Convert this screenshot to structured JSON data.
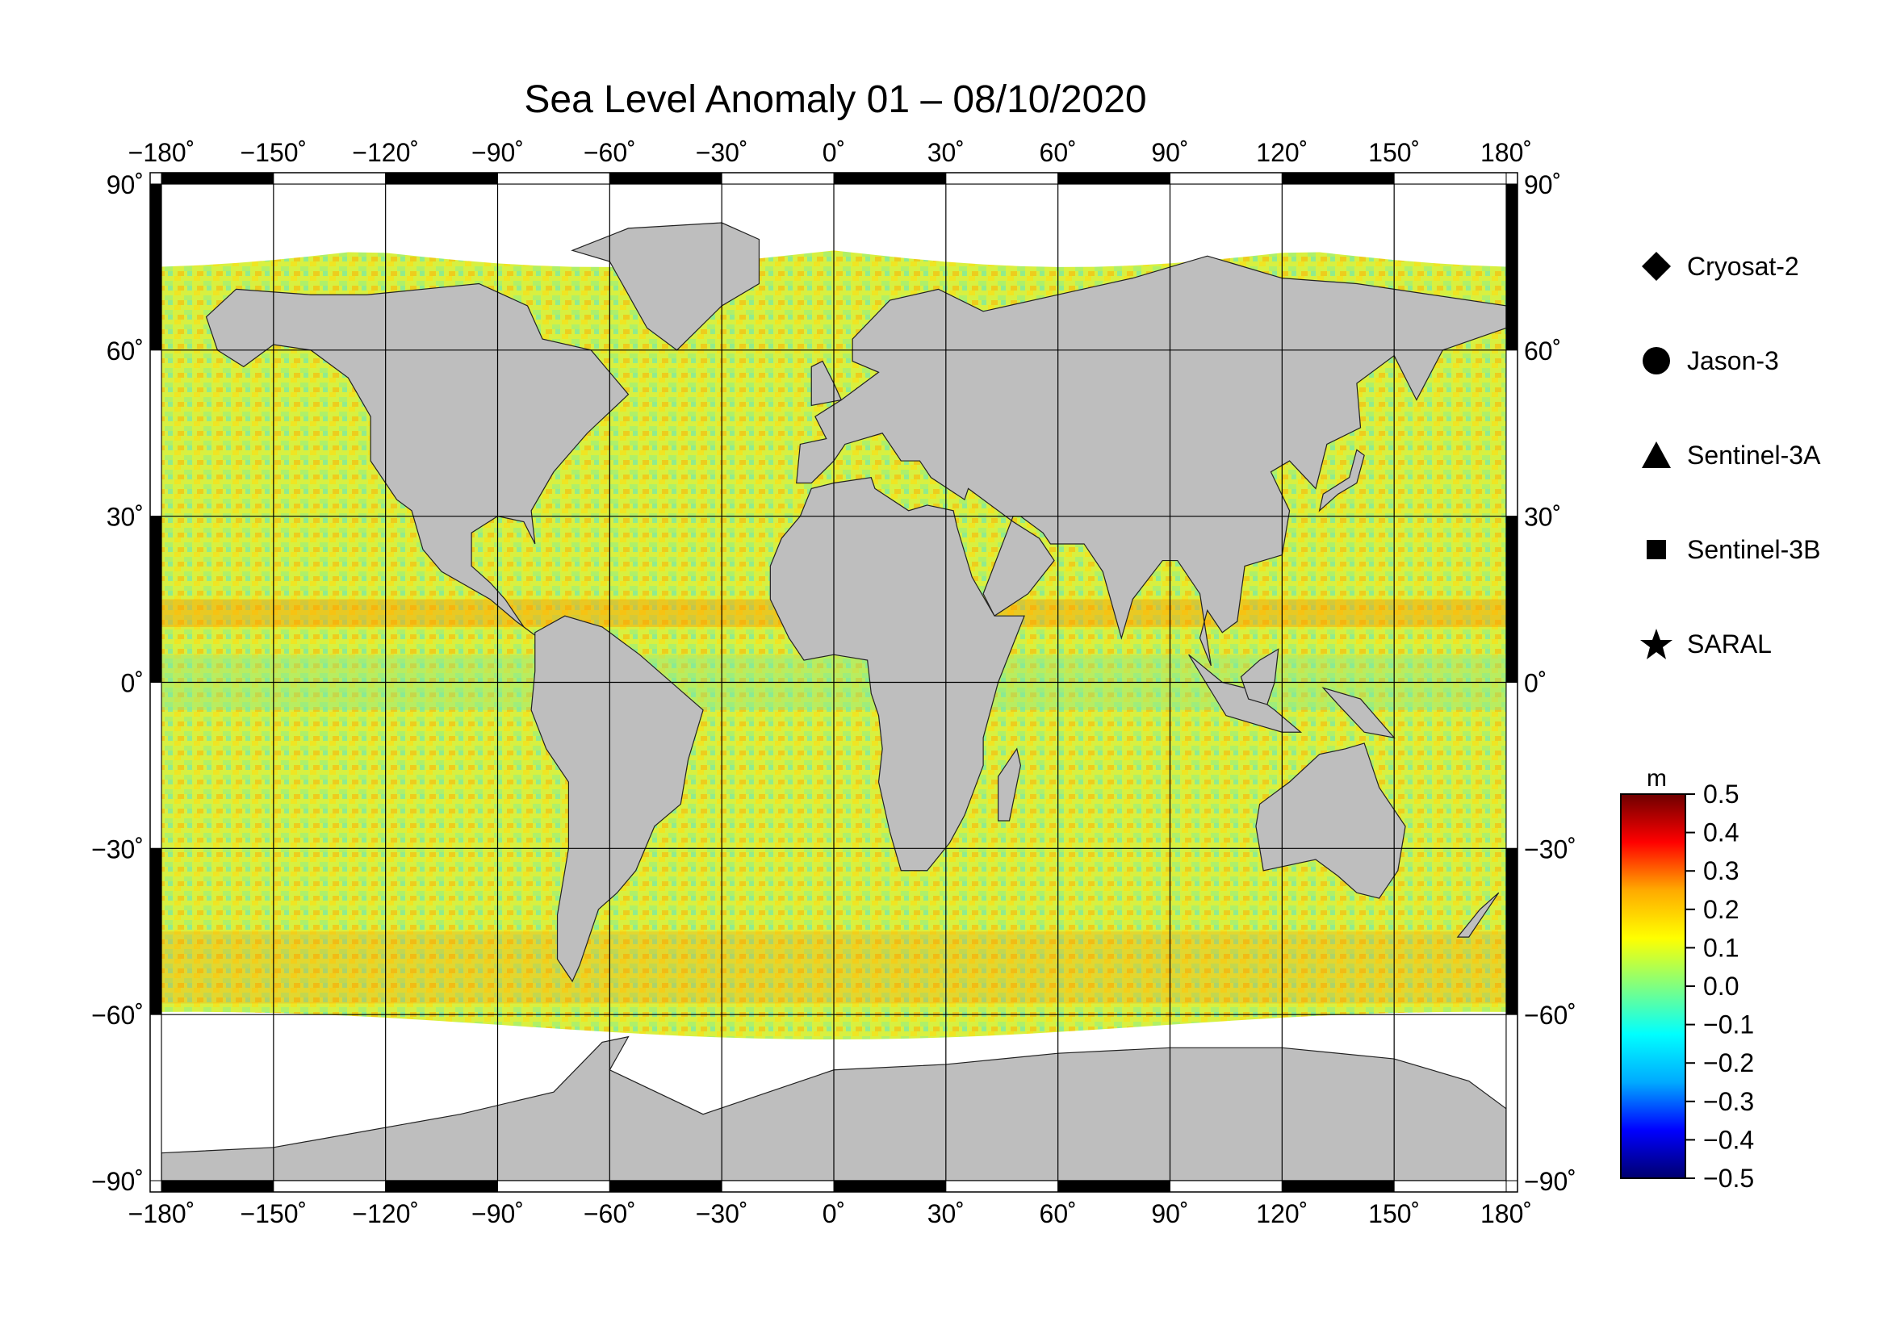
{
  "title": "Sea Level Anomaly 01 – 08/10/2020",
  "map": {
    "lon_ticks": [
      "−180˚",
      "−150˚",
      "−120˚",
      "−90˚",
      "−60˚",
      "−30˚",
      "0˚",
      "30˚",
      "60˚",
      "90˚",
      "120˚",
      "150˚",
      "180˚"
    ],
    "lat_ticks": [
      "90˚",
      "60˚",
      "30˚",
      "0˚",
      "−30˚",
      "−60˚",
      "−90˚"
    ],
    "lon_range": [
      -180,
      180
    ],
    "lat_range": [
      -90,
      90
    ],
    "projection": "equirectangular",
    "grid": true,
    "colors": {
      "land": "#bebebe",
      "no_data": "#ffffff",
      "graticule": "#000000"
    }
  },
  "legend": {
    "placement": "right",
    "items": [
      {
        "label": "Cryosat-2",
        "symbol": "diamond"
      },
      {
        "label": "Jason-3",
        "symbol": "circle"
      },
      {
        "label": "Sentinel-3A",
        "symbol": "triangle"
      },
      {
        "label": "Sentinel-3B",
        "symbol": "square"
      },
      {
        "label": "SARAL",
        "symbol": "star"
      }
    ]
  },
  "colorbar": {
    "unit": "m",
    "min": -0.5,
    "max": 0.5,
    "tick_labels": [
      "0.5",
      "0.4",
      "0.3",
      "0.2",
      "0.1",
      "0.0",
      "−0.1",
      "−0.2",
      "−0.3",
      "−0.4",
      "−0.5"
    ],
    "colormap": [
      "#00006e",
      "#0000ff",
      "#00aaff",
      "#00ffff",
      "#80ff80",
      "#ffff00",
      "#ffaa00",
      "#ff0000",
      "#6e0000"
    ]
  }
}
